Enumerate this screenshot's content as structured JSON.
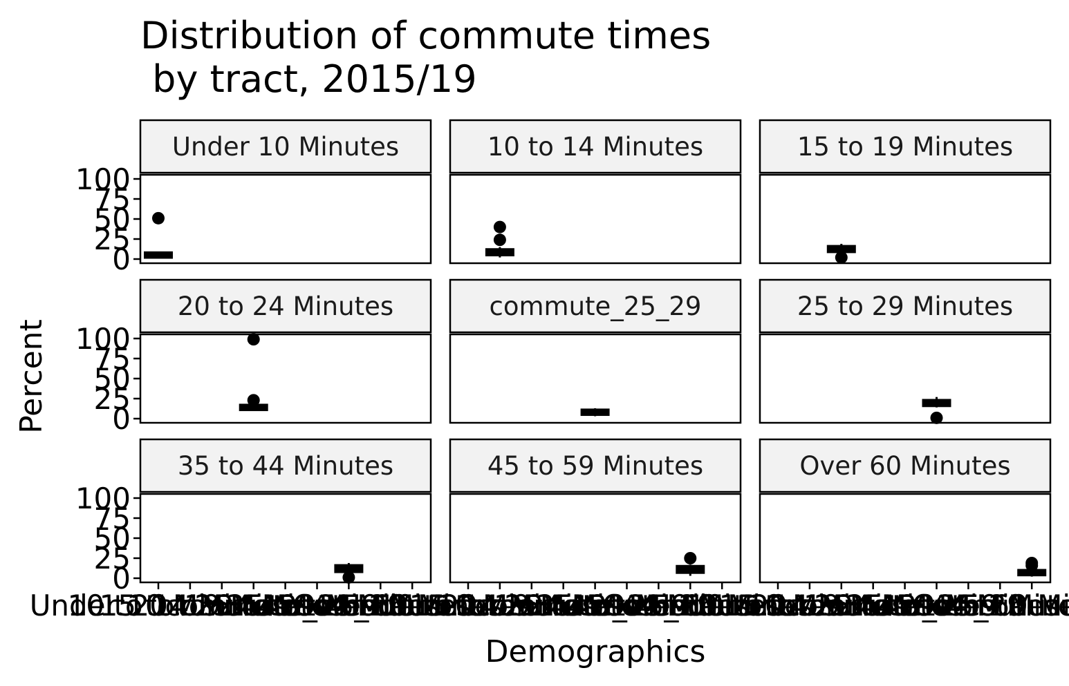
{
  "chart_data": {
    "type": "boxplot",
    "title_line1": "Distribution of commute times",
    "title_line2": " by tract, 2015/19",
    "xlabel": "Demographics",
    "ylabel": "Percent",
    "ylim": [
      0,
      100
    ],
    "yticks": [
      0,
      25,
      50,
      75,
      100
    ],
    "categories": [
      "Under 10 Minutes",
      "10 to 14 Minutes",
      "15 to 19 Minutes",
      "20 to 24 Minutes",
      "commute_25_29",
      "25 to 29 Minutes",
      "35 to 44 Minutes",
      "45 to 59 Minutes",
      "Over 60 Minutes"
    ],
    "panels": [
      {
        "label": "Under 10 Minutes",
        "category_index": 0,
        "whisker_low": 1,
        "q1": 3,
        "median": 5,
        "q3": 7,
        "whisker_high": 9,
        "outliers": [
          51
        ]
      },
      {
        "label": "10 to 14 Minutes",
        "category_index": 1,
        "whisker_low": 2,
        "q1": 6,
        "median": 8,
        "q3": 11,
        "whisker_high": 15,
        "outliers": [
          24,
          40
        ]
      },
      {
        "label": "15 to 19 Minutes",
        "category_index": 2,
        "whisker_low": 6,
        "q1": 10,
        "median": 12,
        "q3": 15,
        "whisker_high": 19,
        "outliers": [
          2
        ]
      },
      {
        "label": "20 to 24 Minutes",
        "category_index": 3,
        "whisker_low": 10,
        "q1": 12,
        "median": 14,
        "q3": 16,
        "whisker_high": 19,
        "outliers": [
          23,
          99
        ]
      },
      {
        "label": "commute_25_29",
        "category_index": 4,
        "whisker_low": 3,
        "q1": 6,
        "median": 8,
        "q3": 10,
        "whisker_high": 13,
        "outliers": []
      },
      {
        "label": "25 to 29 Minutes",
        "category_index": 5,
        "whisker_low": 14,
        "q1": 17,
        "median": 19,
        "q3": 22,
        "whisker_high": 27,
        "outliers": [
          1
        ]
      },
      {
        "label": "35 to 44 Minutes",
        "category_index": 6,
        "whisker_low": 5,
        "q1": 9,
        "median": 12,
        "q3": 15,
        "whisker_high": 19,
        "outliers": [
          1
        ]
      },
      {
        "label": "45 to 59 Minutes",
        "category_index": 7,
        "whisker_low": 3,
        "q1": 8,
        "median": 11,
        "q3": 14,
        "whisker_high": 17,
        "outliers": [
          25
        ]
      },
      {
        "label": "Over 60 Minutes",
        "category_index": 8,
        "whisker_low": 2,
        "q1": 5,
        "median": 7,
        "q3": 9,
        "whisker_high": 13,
        "outliers": [
          16,
          19
        ]
      }
    ],
    "grid": false,
    "legend": "none"
  }
}
